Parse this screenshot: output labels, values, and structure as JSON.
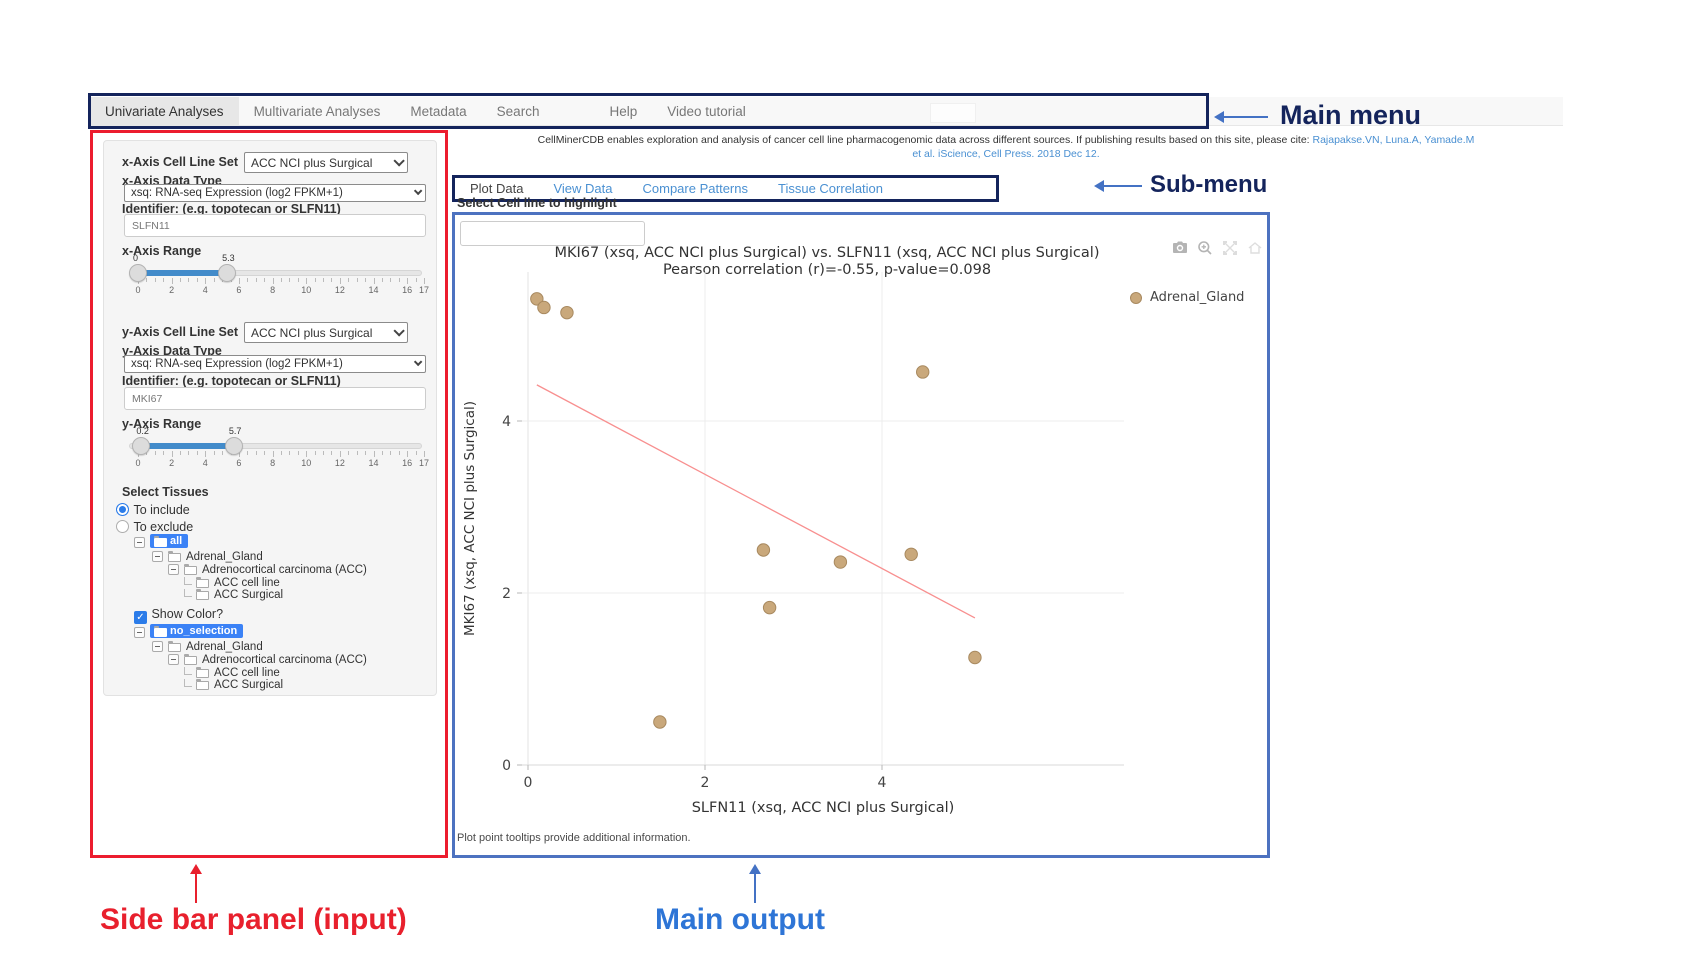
{
  "annotations": {
    "main_menu": "Main menu",
    "sub_menu": "Sub-menu",
    "sidebar_panel": "Side bar panel (input)",
    "main_output": "Main output"
  },
  "navbar": {
    "items": [
      {
        "label": "Univariate Analyses",
        "active": true
      },
      {
        "label": "Multivariate Analyses",
        "active": false
      },
      {
        "label": "Metadata",
        "active": false
      },
      {
        "label": "Search",
        "active": false
      },
      {
        "label": "Help",
        "active": false
      },
      {
        "label": "Video tutorial",
        "active": false
      }
    ]
  },
  "citation": {
    "line1_text": "CellMinerCDB enables exploration and analysis of cancer cell line pharmacogenomic data across different sources. If publishing results based on this site, please cite: ",
    "line1_link": "Rajapakse.VN, Luna.A, Yamade.M",
    "line2_link": "et al. iScience, Cell Press. 2018 Dec 12."
  },
  "submenu": {
    "tabs": [
      {
        "label": "Plot Data",
        "active": true
      },
      {
        "label": "View Data",
        "active": false
      },
      {
        "label": "Compare Patterns",
        "active": false
      },
      {
        "label": "Tissue Correlation",
        "active": false
      }
    ]
  },
  "sidebar": {
    "x_axis": {
      "cell_line_set_label": "x-Axis Cell Line Set",
      "cell_line_set_value": "ACC NCI plus Surgical",
      "data_type_label": "x-Axis Data Type",
      "data_type_value": "xsq: RNA-seq Expression (log2 FPKM+1)",
      "identifier_label": "Identifier: (e.g. topotecan or SLFN11)",
      "identifier_value": "SLFN11",
      "range_label": "x-Axis Range",
      "range": {
        "min": 0,
        "max": 17,
        "low": 0,
        "high": 5.3,
        "low_label": "0",
        "high_label": "5.3",
        "tick_labels": [
          0,
          2,
          4,
          6,
          8,
          10,
          12,
          14,
          16,
          17
        ]
      }
    },
    "y_axis": {
      "cell_line_set_label": "y-Axis Cell Line Set",
      "cell_line_set_value": "ACC NCI plus Surgical",
      "data_type_label": "y-Axis Data Type",
      "data_type_value": "xsq: RNA-seq Expression (log2 FPKM+1)",
      "identifier_label": "Identifier: (e.g. topotecan or SLFN11)",
      "identifier_value": "MKI67",
      "range_label": "y-Axis Range",
      "range": {
        "min": 0,
        "max": 17,
        "low": 0.2,
        "high": 5.7,
        "low_label": "0.2",
        "high_label": "5.7",
        "tick_labels": [
          0,
          2,
          4,
          6,
          8,
          10,
          12,
          14,
          16,
          17
        ]
      }
    },
    "tissues": {
      "label": "Select Tissues",
      "include_label": "To include",
      "exclude_label": "To exclude",
      "include_selected": true
    },
    "tree1": {
      "root": "all",
      "nodes": [
        "Adrenal_Gland",
        "Adrenocortical carcinoma (ACC)",
        "ACC cell line",
        "ACC Surgical"
      ]
    },
    "show_color": {
      "label": "Show Color?",
      "checked": true,
      "checkmark": "✓"
    },
    "tree2": {
      "root": "no_selection",
      "nodes": [
        "Adrenal_Gland",
        "Adrenocortical carcinoma (ACC)",
        "ACC cell line",
        "ACC Surgical"
      ]
    }
  },
  "main": {
    "highlight_label": "Select Cell line to highlight",
    "highlight_value": "",
    "caption": "Plot point tooltips provide additional information.",
    "modebar_icons": [
      "camera-icon",
      "zoom-icon",
      "pan-icon",
      "reset-axes-icon"
    ]
  },
  "chart_data": {
    "type": "scatter",
    "title": "MKI67 (xsq, ACC NCI plus Surgical) vs. SLFN11 (xsq, ACC NCI plus Surgical)",
    "subtitle": "Pearson correlation (r)=-0.55, p-value=0.098",
    "xlabel": "SLFN11 (xsq, ACC NCI plus Surgical)",
    "ylabel": "MKI67 (xsq, ACC NCI plus Surgical)",
    "xticks": [
      0,
      2,
      4
    ],
    "yticks": [
      0,
      2,
      4
    ],
    "xlim": [
      -0.3,
      6.75
    ],
    "ylim": [
      -0.35,
      5.75
    ],
    "grid": true,
    "legend_position": "top-right",
    "series": [
      {
        "name": "Adrenal_Gland",
        "marker_color": "#c9a87b",
        "marker_edge_color": "#a8895f",
        "points": [
          [
            0.1,
            5.42
          ],
          [
            0.18,
            5.32
          ],
          [
            0.44,
            5.26
          ],
          [
            4.46,
            4.57
          ],
          [
            2.66,
            2.5
          ],
          [
            3.53,
            2.36
          ],
          [
            4.33,
            2.45
          ],
          [
            2.73,
            1.83
          ],
          [
            5.05,
            1.25
          ],
          [
            1.49,
            0.5
          ]
        ]
      }
    ],
    "trend_line": {
      "color": "#f88f8f",
      "x1": 0.1,
      "y1": 4.42,
      "x2": 5.05,
      "y2": 1.71
    },
    "pearson_r": -0.55,
    "p_value": 0.098
  }
}
